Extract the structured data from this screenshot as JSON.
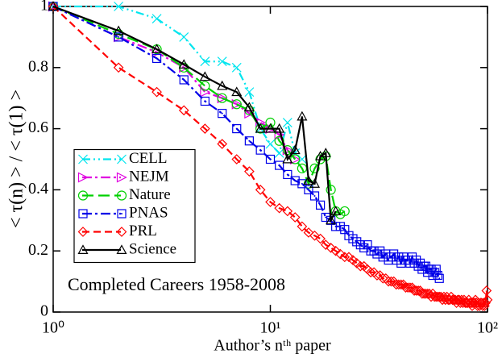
{
  "chart_data": {
    "type": "line",
    "xlabel": "Author’s nᵗʰ paper",
    "ylabel": "< τ(n) > / < τ(1) >",
    "annotation": "Completed Careers 1958-2008",
    "xscale": "log",
    "xlim": [
      1,
      100
    ],
    "ylim": [
      0,
      1
    ],
    "xticks": [
      {
        "value": 1,
        "label": "10⁰"
      },
      {
        "value": 10,
        "label": "10¹"
      },
      {
        "value": 100,
        "label": "10²"
      }
    ],
    "yticks": [
      0,
      0.2,
      0.4,
      0.6,
      0.8,
      1
    ],
    "legend": "center left",
    "series": [
      {
        "name": "CELL",
        "color": "#00e5ee",
        "marker": "x",
        "dash": "dash-dot-dot",
        "x": [
          1,
          2,
          3,
          4,
          5,
          6,
          7,
          8,
          9,
          10,
          11,
          12,
          13,
          14
        ],
        "values": [
          1,
          1.0,
          0.96,
          0.9,
          0.82,
          0.82,
          0.8,
          0.72,
          0.6,
          0.55,
          0.52,
          0.62,
          0.52,
          0.5
        ]
      },
      {
        "name": "NEJM",
        "color": "#e000e0",
        "marker": "triangle-right",
        "dash": "dash-dot",
        "x": [
          1,
          2,
          3,
          4,
          5,
          6,
          7,
          8,
          9,
          10,
          11,
          12,
          13
        ],
        "values": [
          1,
          0.9,
          0.85,
          0.8,
          0.72,
          0.7,
          0.68,
          0.65,
          0.62,
          0.6,
          0.58,
          0.53,
          0.5
        ]
      },
      {
        "name": "Nature",
        "color": "#00d000",
        "marker": "circle",
        "dash": "long-dash",
        "x": [
          1,
          2,
          3,
          4,
          5,
          6,
          7,
          8,
          9,
          10,
          11,
          12,
          13,
          14,
          15,
          16,
          17,
          18,
          19,
          20,
          21,
          22
        ],
        "values": [
          1,
          0.91,
          0.86,
          0.8,
          0.74,
          0.7,
          0.68,
          0.66,
          0.6,
          0.62,
          0.56,
          0.53,
          0.5,
          0.47,
          0.42,
          0.47,
          0.5,
          0.51,
          0.4,
          0.33,
          0.32,
          0.33
        ]
      },
      {
        "name": "PNAS",
        "color": "#0000e8",
        "marker": "square",
        "dash": "dash-dot",
        "x": [
          1,
          2,
          3,
          4,
          5,
          6,
          7,
          8,
          9,
          10,
          11,
          12,
          13,
          14,
          15,
          16,
          17,
          18,
          19,
          20,
          21,
          22,
          23,
          24,
          25,
          26,
          27,
          28,
          29,
          30,
          31,
          32,
          33,
          34,
          35,
          36,
          37,
          38,
          39,
          40,
          41,
          42,
          43,
          44,
          45,
          46,
          47,
          48,
          49,
          50,
          51,
          52,
          53,
          54,
          55,
          56,
          57,
          58,
          59,
          60
        ],
        "values": [
          1,
          0.9,
          0.83,
          0.76,
          0.69,
          0.65,
          0.6,
          0.56,
          0.53,
          0.5,
          0.48,
          0.45,
          0.43,
          0.42,
          0.4,
          0.38,
          0.35,
          0.31,
          0.3,
          0.28,
          0.28,
          0.27,
          0.25,
          0.24,
          0.23,
          0.22,
          0.21,
          0.22,
          0.2,
          0.2,
          0.19,
          0.2,
          0.18,
          0.19,
          0.17,
          0.18,
          0.19,
          0.17,
          0.18,
          0.16,
          0.18,
          0.17,
          0.17,
          0.16,
          0.18,
          0.16,
          0.17,
          0.15,
          0.16,
          0.14,
          0.15,
          0.15,
          0.13,
          0.14,
          0.14,
          0.12,
          0.13,
          0.14,
          0.12,
          0.11
        ]
      },
      {
        "name": "PRL",
        "color": "#ff0000",
        "marker": "diamond",
        "dash": "dash",
        "x": [
          1,
          2,
          3,
          4,
          5,
          6,
          7,
          8,
          9,
          10,
          11,
          12,
          13,
          14,
          15,
          16,
          17,
          18,
          19,
          20,
          21,
          22,
          23,
          24,
          25,
          26,
          27,
          28,
          29,
          30,
          31,
          32,
          33,
          34,
          35,
          36,
          37,
          38,
          39,
          40,
          41,
          42,
          43,
          44,
          45,
          46,
          47,
          48,
          49,
          50,
          51,
          52,
          53,
          54,
          55,
          56,
          57,
          58,
          59,
          60,
          61,
          62,
          63,
          64,
          65,
          66,
          67,
          68,
          69,
          70,
          71,
          72,
          73,
          74,
          75,
          76,
          77,
          78,
          79,
          80,
          81,
          82,
          83,
          84,
          85,
          86,
          87,
          88,
          89,
          90,
          91,
          92,
          93,
          94,
          95,
          96,
          97,
          98,
          99,
          100
        ],
        "values": [
          1,
          0.8,
          0.72,
          0.66,
          0.6,
          0.55,
          0.5,
          0.46,
          0.4,
          0.36,
          0.34,
          0.33,
          0.31,
          0.28,
          0.26,
          0.25,
          0.24,
          0.22,
          0.21,
          0.2,
          0.19,
          0.18,
          0.18,
          0.17,
          0.16,
          0.15,
          0.15,
          0.14,
          0.13,
          0.13,
          0.12,
          0.12,
          0.11,
          0.11,
          0.1,
          0.1,
          0.1,
          0.09,
          0.09,
          0.09,
          0.09,
          0.08,
          0.08,
          0.08,
          0.08,
          0.07,
          0.07,
          0.07,
          0.07,
          0.06,
          0.06,
          0.06,
          0.06,
          0.06,
          0.05,
          0.06,
          0.05,
          0.05,
          0.05,
          0.05,
          0.05,
          0.04,
          0.05,
          0.04,
          0.05,
          0.04,
          0.04,
          0.05,
          0.04,
          0.04,
          0.04,
          0.03,
          0.04,
          0.04,
          0.03,
          0.04,
          0.03,
          0.04,
          0.03,
          0.03,
          0.03,
          0.04,
          0.03,
          0.03,
          0.02,
          0.03,
          0.03,
          0.04,
          0.03,
          0.02,
          0.03,
          0.02,
          0.03,
          0.03,
          0.02,
          0.03,
          0.02,
          0.03,
          0.07,
          0.04
        ]
      },
      {
        "name": "Science",
        "color": "#000000",
        "marker": "triangle-up",
        "dash": "solid",
        "x": [
          1,
          2,
          3,
          4,
          5,
          6,
          7,
          8,
          9,
          10,
          11,
          12,
          13,
          14,
          15,
          16,
          17,
          18,
          19,
          20
        ],
        "values": [
          1,
          0.92,
          0.86,
          0.81,
          0.77,
          0.74,
          0.72,
          0.67,
          0.6,
          0.6,
          0.6,
          0.5,
          0.53,
          0.64,
          0.43,
          0.42,
          0.51,
          0.52,
          0.3,
          0.33
        ]
      }
    ]
  }
}
